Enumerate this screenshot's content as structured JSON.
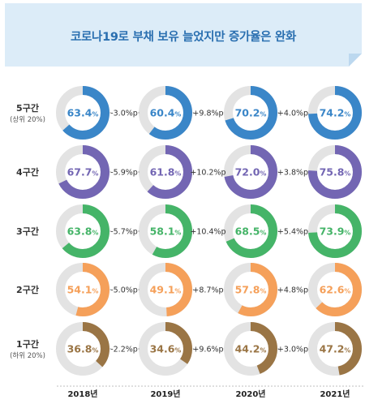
{
  "title": "코로나19로 부채 보유 늘었지만 증가율은 완화",
  "chart_data": {
    "type": "donut-grid",
    "title": "코로나19로 부채 보유 늘었지만 증가율은 완화",
    "years": [
      "2018년",
      "2019년",
      "2020년",
      "2021년"
    ],
    "unit": "%",
    "rows": [
      {
        "label": "5구간",
        "sublabel": "(상위 20%)",
        "color": "#3a86c8",
        "values": [
          63.4,
          60.4,
          70.2,
          74.2
        ],
        "value_labels": [
          "63.4",
          "60.4",
          "70.2",
          "74.2"
        ],
        "changes": [
          "-3.0%p",
          "+9.8%p",
          "+4.0%p"
        ]
      },
      {
        "label": "4구간",
        "sublabel": "",
        "color": "#7366b3",
        "values": [
          67.7,
          61.8,
          72.0,
          75.8
        ],
        "value_labels": [
          "67.7",
          "61.8",
          "72.0",
          "75.8"
        ],
        "changes": [
          "-5.9%p",
          "+10.2%p",
          "+3.8%p"
        ]
      },
      {
        "label": "3구간",
        "sublabel": "",
        "color": "#45b468",
        "values": [
          63.8,
          58.1,
          68.5,
          73.9
        ],
        "value_labels": [
          "63.8",
          "58.1",
          "68.5",
          "73.9"
        ],
        "changes": [
          "-5.7%p",
          "+10.4%p",
          "+5.4%p"
        ]
      },
      {
        "label": "2구간",
        "sublabel": "",
        "color": "#f5a05a",
        "values": [
          54.1,
          49.1,
          57.8,
          62.6
        ],
        "value_labels": [
          "54.1",
          "49.1",
          "57.8",
          "62.6"
        ],
        "changes": [
          "-5.0%p",
          "+8.7%p",
          "+4.8%p"
        ]
      },
      {
        "label": "1구간",
        "sublabel": "(하위 20%)",
        "color": "#9a7545",
        "values": [
          36.8,
          34.6,
          44.2,
          47.2
        ],
        "value_labels": [
          "36.8",
          "34.6",
          "44.2",
          "47.2"
        ],
        "changes": [
          "-2.2%p",
          "+9.6%p",
          "+3.0%p"
        ]
      }
    ],
    "track_color": "#e3e3e3",
    "banner_color": "#dcecf8",
    "title_color": "#2a6fb0"
  }
}
